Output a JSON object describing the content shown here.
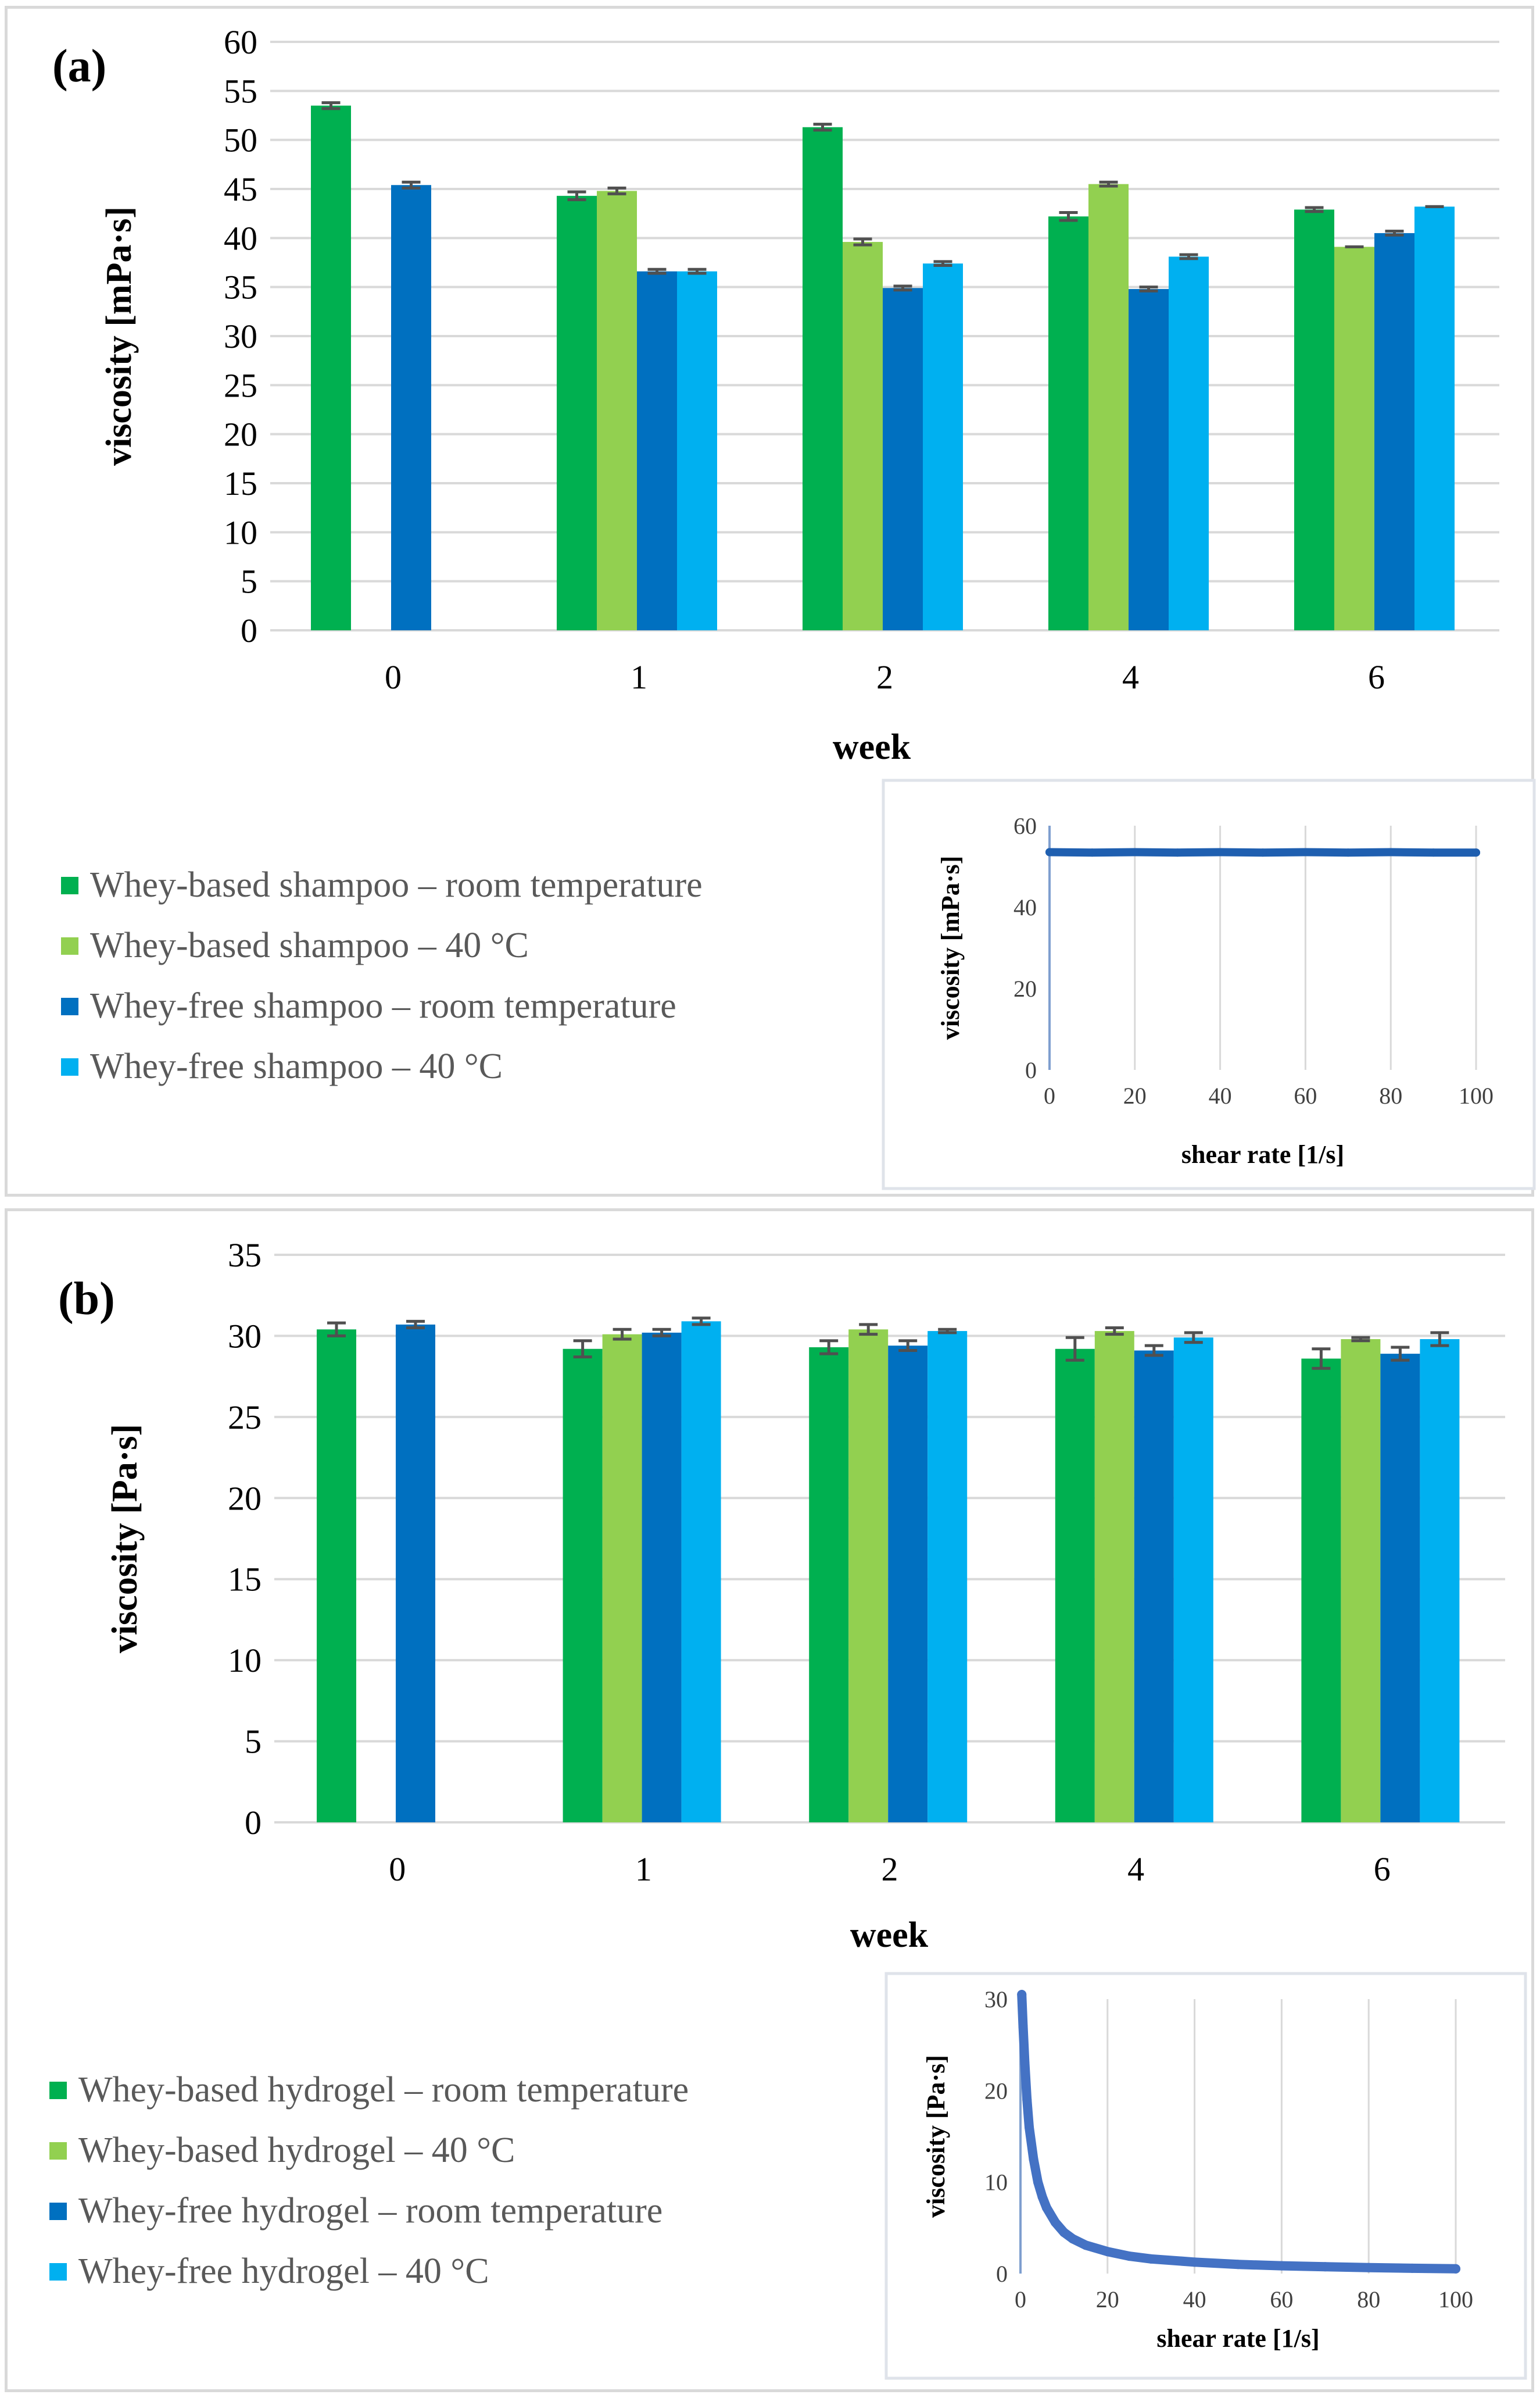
{
  "chart_data": [
    {
      "panel": "(a)",
      "type": "bar",
      "xlabel": "week",
      "ylabel": "viscosity [mPa·s]",
      "ylim": [
        0,
        60
      ],
      "yticks": [
        0,
        5,
        10,
        15,
        20,
        25,
        30,
        35,
        40,
        45,
        50,
        55,
        60
      ],
      "categories": [
        "0",
        "1",
        "2",
        "4",
        "6"
      ],
      "series": [
        {
          "name": "Whey-based shampoo – room temperature",
          "color": "#00b050",
          "values": [
            53.5,
            44.3,
            51.3,
            42.2,
            42.9
          ],
          "errors": [
            0.3,
            0.4,
            0.3,
            0.4,
            0.2
          ]
        },
        {
          "name": "Whey-based shampoo – 40 °C",
          "color": "#92d050",
          "values": [
            null,
            44.8,
            39.6,
            45.5,
            39.1
          ],
          "errors": [
            null,
            0.3,
            0.3,
            0.2,
            0
          ]
        },
        {
          "name": "Whey-free shampoo – room temperature",
          "color": "#0070c0",
          "values": [
            45.4,
            36.6,
            34.9,
            34.8,
            40.5
          ],
          "errors": [
            0.3,
            0.2,
            0.2,
            0.2,
            0.2
          ]
        },
        {
          "name": "Whey-free shampoo – 40 °C",
          "color": "#00b0f0",
          "values": [
            null,
            36.6,
            37.4,
            38.1,
            43.2
          ],
          "errors": [
            null,
            0.2,
            0.2,
            0.2,
            0
          ]
        }
      ],
      "inset": {
        "type": "line",
        "xlabel": "shear rate [1/s]",
        "ylabel": "viscosity [mPa·s]",
        "xlim": [
          0,
          100
        ],
        "ylim": [
          0,
          60
        ],
        "xticks": [
          0,
          20,
          40,
          60,
          80,
          100
        ],
        "yticks": [
          0,
          20,
          40,
          60
        ],
        "x": [
          0,
          10,
          20,
          30,
          40,
          50,
          60,
          70,
          80,
          90,
          100
        ],
        "y": [
          53.5,
          53.4,
          53.5,
          53.4,
          53.5,
          53.4,
          53.5,
          53.4,
          53.5,
          53.4,
          53.4
        ],
        "color": "#1f5fb0"
      }
    },
    {
      "panel": "(b)",
      "type": "bar",
      "xlabel": "week",
      "ylabel": "viscosity [Pa·s]",
      "ylim": [
        0,
        35
      ],
      "yticks": [
        0,
        5,
        10,
        15,
        20,
        25,
        30,
        35
      ],
      "categories": [
        "0",
        "1",
        "2",
        "4",
        "6"
      ],
      "series": [
        {
          "name": "Whey-based hydrogel – room temperature",
          "color": "#00b050",
          "values": [
            30.4,
            29.2,
            29.3,
            29.2,
            28.6
          ],
          "errors": [
            0.4,
            0.5,
            0.4,
            0.7,
            0.6
          ]
        },
        {
          "name": "Whey-based hydrogel – 40 °C",
          "color": "#92d050",
          "values": [
            null,
            30.1,
            30.4,
            30.3,
            29.8
          ],
          "errors": [
            null,
            0.3,
            0.3,
            0.2,
            0.1
          ]
        },
        {
          "name": "Whey-free hydrogel – room temperature",
          "color": "#0070c0",
          "values": [
            30.7,
            30.2,
            29.4,
            29.1,
            28.9
          ],
          "errors": [
            0.2,
            0.2,
            0.3,
            0.3,
            0.4
          ]
        },
        {
          "name": "Whey-free hydrogel – 40 °C",
          "color": "#00b0f0",
          "values": [
            null,
            30.9,
            30.3,
            29.9,
            29.8
          ],
          "errors": [
            null,
            0.2,
            0.1,
            0.3,
            0.4
          ]
        }
      ],
      "inset": {
        "type": "line",
        "xlabel": "shear rate [1/s]",
        "ylabel": "viscosity [Pa·s]",
        "xlim": [
          0,
          100
        ],
        "ylim": [
          0,
          30
        ],
        "xticks": [
          0,
          20,
          40,
          60,
          80,
          100
        ],
        "yticks": [
          0,
          10,
          20,
          30
        ],
        "x": [
          0.3,
          0.6,
          1,
          1.5,
          2,
          3,
          4,
          5,
          6,
          8,
          10,
          12,
          15,
          20,
          25,
          30,
          40,
          50,
          60,
          70,
          80,
          90,
          100
        ],
        "y": [
          30.5,
          27,
          23,
          19,
          16,
          12.5,
          10,
          8.4,
          7.2,
          5.6,
          4.5,
          3.8,
          3.1,
          2.4,
          1.9,
          1.6,
          1.25,
          1.0,
          0.85,
          0.75,
          0.65,
          0.58,
          0.52
        ],
        "color": "#4472c4"
      }
    }
  ]
}
